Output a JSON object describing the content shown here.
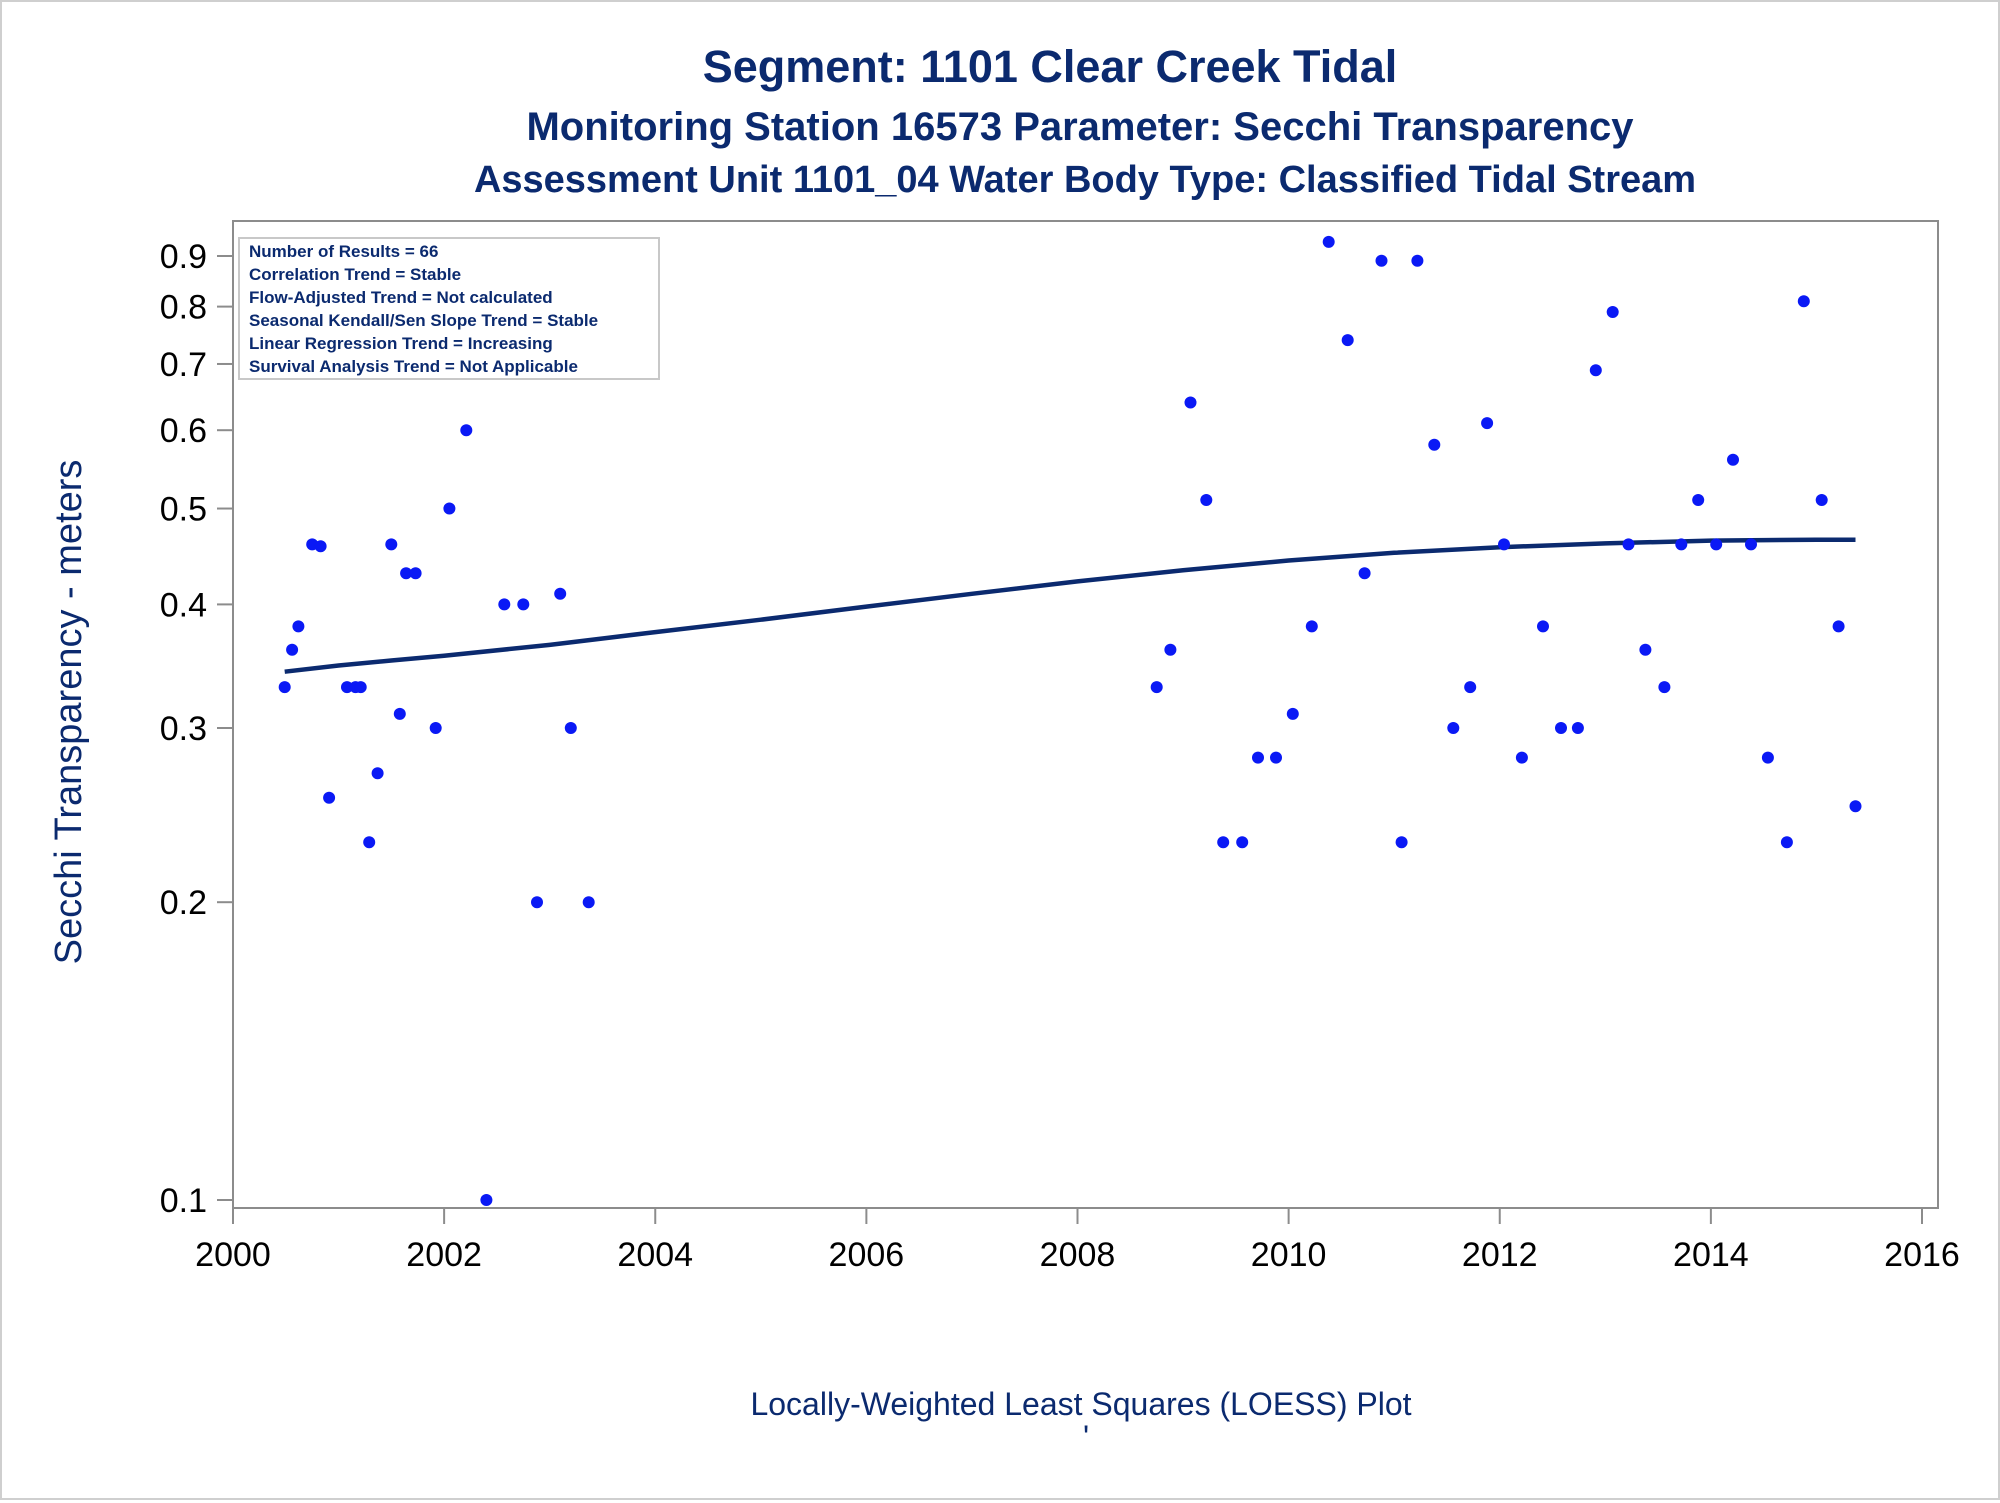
{
  "titles": {
    "line1": "Segment: 1101  Clear Creek Tidal",
    "line2": "Monitoring Station 16573 Parameter: Secchi Transparency",
    "line3": "Assessment Unit 1101_04   Water Body Type: Classified Tidal Stream"
  },
  "stats_box": [
    "Number of Results = 66",
    "Correlation Trend = Stable",
    "Flow-Adjusted Trend = Not calculated",
    "Seasonal Kendall/Sen Slope Trend = Stable",
    "Linear Regression Trend = Increasing",
    "Survival Analysis Trend = Not Applicable"
  ],
  "footnote": "Locally-Weighted Least Squares (LOESS) Plot",
  "footnote_mark": "'",
  "chart_data": {
    "type": "scatter",
    "ylabel": "Secchi Transparency - meters",
    "xlabel": "",
    "y_scale": "log",
    "xlim": [
      2000,
      2016
    ],
    "ylim": [
      0.095,
      0.97
    ],
    "x_ticks": [
      2000,
      2002,
      2004,
      2006,
      2008,
      2010,
      2012,
      2014,
      2016
    ],
    "y_ticks": [
      0.1,
      0.2,
      0.3,
      0.4,
      0.5,
      0.6,
      0.7,
      0.8,
      0.9
    ],
    "grid": false,
    "point_color": "#0a19f5",
    "line_color": "#0b2a6f",
    "points": [
      [
        2000.49,
        0.33
      ],
      [
        2000.56,
        0.36
      ],
      [
        2000.62,
        0.38
      ],
      [
        2000.75,
        0.46
      ],
      [
        2000.83,
        0.458
      ],
      [
        2000.91,
        0.255
      ],
      [
        2001.08,
        0.33
      ],
      [
        2001.16,
        0.33
      ],
      [
        2001.21,
        0.33
      ],
      [
        2001.29,
        0.23
      ],
      [
        2001.37,
        0.27
      ],
      [
        2001.5,
        0.46
      ],
      [
        2001.58,
        0.31
      ],
      [
        2001.64,
        0.43
      ],
      [
        2001.73,
        0.43
      ],
      [
        2001.92,
        0.3
      ],
      [
        2002.05,
        0.5
      ],
      [
        2002.21,
        0.6
      ],
      [
        2002.4,
        0.1
      ],
      [
        2002.57,
        0.4
      ],
      [
        2002.75,
        0.4
      ],
      [
        2002.88,
        0.2
      ],
      [
        2003.1,
        0.41
      ],
      [
        2003.2,
        0.3
      ],
      [
        2003.37,
        0.2
      ],
      [
        2008.75,
        0.33
      ],
      [
        2008.88,
        0.36
      ],
      [
        2009.07,
        0.64
      ],
      [
        2009.22,
        0.51
      ],
      [
        2009.38,
        0.23
      ],
      [
        2009.56,
        0.23
      ],
      [
        2009.71,
        0.28
      ],
      [
        2009.88,
        0.28
      ],
      [
        2010.04,
        0.31
      ],
      [
        2010.22,
        0.38
      ],
      [
        2010.38,
        0.93
      ],
      [
        2010.56,
        0.74
      ],
      [
        2010.72,
        0.43
      ],
      [
        2010.88,
        0.89
      ],
      [
        2011.07,
        0.23
      ],
      [
        2011.22,
        0.89
      ],
      [
        2011.38,
        0.58
      ],
      [
        2011.56,
        0.3
      ],
      [
        2011.72,
        0.33
      ],
      [
        2011.88,
        0.61
      ],
      [
        2012.04,
        0.46
      ],
      [
        2012.21,
        0.28
      ],
      [
        2012.41,
        0.38
      ],
      [
        2012.58,
        0.3
      ],
      [
        2012.74,
        0.3
      ],
      [
        2012.91,
        0.69
      ],
      [
        2013.07,
        0.79
      ],
      [
        2013.22,
        0.46
      ],
      [
        2013.38,
        0.36
      ],
      [
        2013.56,
        0.33
      ],
      [
        2013.72,
        0.46
      ],
      [
        2013.88,
        0.51
      ],
      [
        2014.05,
        0.46
      ],
      [
        2014.21,
        0.56
      ],
      [
        2014.38,
        0.46
      ],
      [
        2014.54,
        0.28
      ],
      [
        2014.72,
        0.23
      ],
      [
        2014.88,
        0.81
      ],
      [
        2015.05,
        0.51
      ],
      [
        2015.21,
        0.38
      ],
      [
        2015.37,
        0.25
      ]
    ],
    "loess": [
      [
        2000.49,
        0.342
      ],
      [
        2001.0,
        0.347
      ],
      [
        2001.5,
        0.351
      ],
      [
        2002.0,
        0.355
      ],
      [
        2003.0,
        0.364
      ],
      [
        2004.0,
        0.375
      ],
      [
        2005.0,
        0.386
      ],
      [
        2006.0,
        0.398
      ],
      [
        2007.0,
        0.41
      ],
      [
        2008.0,
        0.422
      ],
      [
        2009.0,
        0.433
      ],
      [
        2010.0,
        0.443
      ],
      [
        2011.0,
        0.451
      ],
      [
        2012.0,
        0.457
      ],
      [
        2013.0,
        0.461
      ],
      [
        2014.0,
        0.464
      ],
      [
        2015.0,
        0.465
      ],
      [
        2015.37,
        0.465
      ]
    ]
  }
}
